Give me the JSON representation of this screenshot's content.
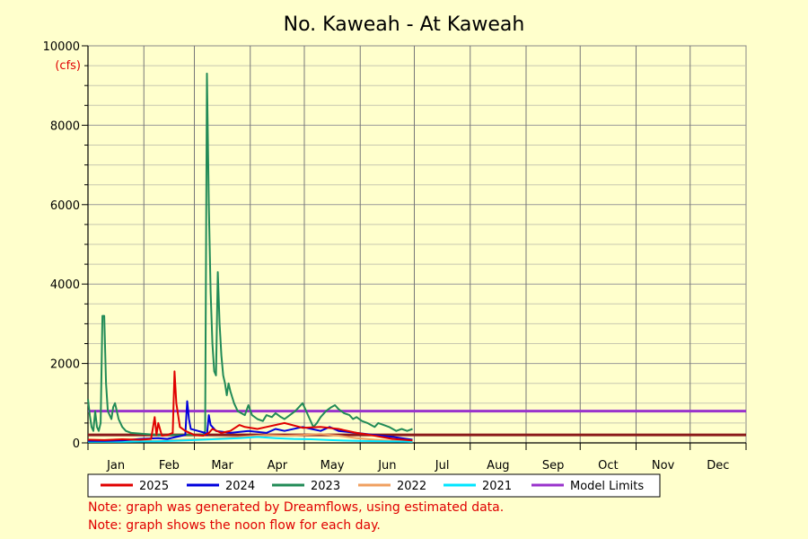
{
  "chart_data": {
    "type": "line",
    "title": "No. Kaweah - At Kaweah",
    "ylabel": "(cfs)",
    "xlabel": "",
    "ylim": [
      0,
      10000
    ],
    "y_ticks": [
      0,
      2000,
      4000,
      6000,
      8000,
      10000
    ],
    "months": [
      "Jan",
      "Feb",
      "Mar",
      "Apr",
      "May",
      "Jun",
      "Jul",
      "Aug",
      "Sep",
      "Oct",
      "Nov",
      "Dec"
    ],
    "grid": true,
    "legend_position": "bottom",
    "series": [
      {
        "name": "2025",
        "color": "#e00000",
        "points": [
          [
            1,
            80
          ],
          [
            10,
            70
          ],
          [
            20,
            90
          ],
          [
            30,
            80
          ],
          [
            36,
            100
          ],
          [
            38,
            650
          ],
          [
            39,
            200
          ],
          [
            40,
            500
          ],
          [
            42,
            180
          ],
          [
            45,
            200
          ],
          [
            48,
            250
          ],
          [
            49,
            1800
          ],
          [
            50,
            1000
          ],
          [
            52,
            400
          ],
          [
            55,
            300
          ],
          [
            60,
            200
          ],
          [
            65,
            180
          ],
          [
            68,
            250
          ],
          [
            70,
            350
          ],
          [
            75,
            250
          ],
          [
            80,
            300
          ],
          [
            85,
            450
          ],
          [
            88,
            400
          ],
          [
            95,
            350
          ],
          [
            100,
            400
          ],
          [
            110,
            500
          ],
          [
            120,
            380
          ],
          [
            130,
            400
          ],
          [
            140,
            350
          ],
          [
            150,
            250
          ],
          [
            160,
            180
          ],
          [
            170,
            100
          ],
          [
            181,
            60
          ]
        ]
      },
      {
        "name": "2024",
        "color": "#0000dd",
        "points": [
          [
            1,
            50
          ],
          [
            10,
            50
          ],
          [
            20,
            60
          ],
          [
            30,
            100
          ],
          [
            40,
            120
          ],
          [
            45,
            100
          ],
          [
            50,
            150
          ],
          [
            55,
            200
          ],
          [
            56,
            1050
          ],
          [
            57,
            600
          ],
          [
            58,
            350
          ],
          [
            62,
            300
          ],
          [
            66,
            250
          ],
          [
            67,
            200
          ],
          [
            68,
            700
          ],
          [
            69,
            450
          ],
          [
            72,
            300
          ],
          [
            80,
            250
          ],
          [
            90,
            300
          ],
          [
            100,
            250
          ],
          [
            105,
            350
          ],
          [
            110,
            300
          ],
          [
            120,
            400
          ],
          [
            125,
            350
          ],
          [
            130,
            300
          ],
          [
            135,
            400
          ],
          [
            140,
            300
          ],
          [
            150,
            250
          ],
          [
            160,
            200
          ],
          [
            170,
            150
          ],
          [
            181,
            80
          ]
        ]
      },
      {
        "name": "2023",
        "color": "#228b57",
        "points": [
          [
            1,
            1100
          ],
          [
            2,
            700
          ],
          [
            3,
            400
          ],
          [
            4,
            300
          ],
          [
            5,
            800
          ],
          [
            6,
            400
          ],
          [
            7,
            300
          ],
          [
            8,
            500
          ],
          [
            9,
            3200
          ],
          [
            10,
            3200
          ],
          [
            11,
            1500
          ],
          [
            12,
            800
          ],
          [
            14,
            600
          ],
          [
            15,
            900
          ],
          [
            16,
            1000
          ],
          [
            17,
            800
          ],
          [
            18,
            600
          ],
          [
            20,
            400
          ],
          [
            22,
            300
          ],
          [
            25,
            250
          ],
          [
            40,
            200
          ],
          [
            55,
            200
          ],
          [
            65,
            200
          ],
          [
            66,
            300
          ],
          [
            67,
            9300
          ],
          [
            68,
            6000
          ],
          [
            69,
            3800
          ],
          [
            70,
            2500
          ],
          [
            71,
            1800
          ],
          [
            72,
            1700
          ],
          [
            73,
            4300
          ],
          [
            74,
            3000
          ],
          [
            75,
            2200
          ],
          [
            76,
            1700
          ],
          [
            77,
            1500
          ],
          [
            78,
            1200
          ],
          [
            79,
            1500
          ],
          [
            80,
            1300
          ],
          [
            82,
            1000
          ],
          [
            84,
            800
          ],
          [
            86,
            750
          ],
          [
            88,
            700
          ],
          [
            90,
            950
          ],
          [
            92,
            700
          ],
          [
            95,
            600
          ],
          [
            98,
            550
          ],
          [
            100,
            700
          ],
          [
            103,
            650
          ],
          [
            105,
            750
          ],
          [
            108,
            650
          ],
          [
            110,
            600
          ],
          [
            113,
            700
          ],
          [
            116,
            800
          ],
          [
            118,
            900
          ],
          [
            120,
            1000
          ],
          [
            122,
            800
          ],
          [
            124,
            600
          ],
          [
            126,
            400
          ],
          [
            128,
            500
          ],
          [
            130,
            650
          ],
          [
            133,
            800
          ],
          [
            136,
            900
          ],
          [
            138,
            950
          ],
          [
            140,
            850
          ],
          [
            143,
            750
          ],
          [
            146,
            700
          ],
          [
            148,
            600
          ],
          [
            150,
            650
          ],
          [
            153,
            550
          ],
          [
            156,
            500
          ],
          [
            158,
            450
          ],
          [
            160,
            400
          ],
          [
            162,
            500
          ],
          [
            165,
            450
          ],
          [
            168,
            400
          ],
          [
            170,
            350
          ],
          [
            172,
            300
          ],
          [
            175,
            350
          ],
          [
            178,
            300
          ],
          [
            181,
            350
          ]
        ]
      },
      {
        "name": "2022",
        "color": "#f0a060",
        "points": [
          [
            1,
            40
          ],
          [
            20,
            40
          ],
          [
            40,
            50
          ],
          [
            55,
            80
          ],
          [
            70,
            100
          ],
          [
            85,
            150
          ],
          [
            100,
            200
          ],
          [
            110,
            180
          ],
          [
            120,
            200
          ],
          [
            130,
            220
          ],
          [
            140,
            180
          ],
          [
            150,
            120
          ],
          [
            160,
            80
          ],
          [
            170,
            50
          ],
          [
            181,
            30
          ]
        ]
      },
      {
        "name": "2021",
        "color": "#00e5ff",
        "points": [
          [
            1,
            30
          ],
          [
            20,
            30
          ],
          [
            40,
            40
          ],
          [
            55,
            60
          ],
          [
            70,
            90
          ],
          [
            85,
            120
          ],
          [
            95,
            150
          ],
          [
            105,
            120
          ],
          [
            115,
            100
          ],
          [
            125,
            90
          ],
          [
            135,
            70
          ],
          [
            150,
            50
          ],
          [
            165,
            40
          ],
          [
            181,
            30
          ]
        ]
      }
    ],
    "model_limits": {
      "name": "Model Limits",
      "color": "#9933cc",
      "values": [
        800,
        200
      ],
      "lower_color": "#8b1a1a"
    }
  },
  "notes": [
    "Note: graph was generated by Dreamflows, using estimated data.",
    "Note: graph shows the noon flow for each day."
  ]
}
